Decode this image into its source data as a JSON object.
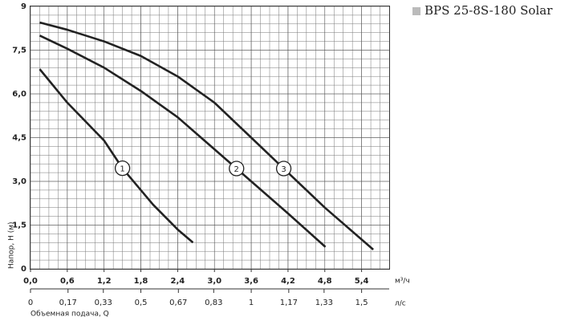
{
  "chart_data": {
    "type": "line",
    "title": "BPS 25-8S-180 Solar",
    "ylabel": "Напор, H (м)",
    "xlabel": "Объемная подача, Q",
    "xunit": "м³/ч",
    "x2unit": "л/с",
    "xlim": [
      0,
      5.85
    ],
    "ylim": [
      0,
      9
    ],
    "x2lim": [
      0,
      1.625
    ],
    "grid": true,
    "color": "#222222",
    "legend_color": "#bbbbbb",
    "xticks": [
      {
        "value": 0,
        "label": "0,0"
      },
      {
        "value": 0.6,
        "label": "0,6"
      },
      {
        "value": 1.2,
        "label": "1,2"
      },
      {
        "value": 1.8,
        "label": "1,8"
      },
      {
        "value": 2.4,
        "label": "2,4"
      },
      {
        "value": 3.0,
        "label": "3,0"
      },
      {
        "value": 3.6,
        "label": "3,6"
      },
      {
        "value": 4.2,
        "label": "4,2"
      },
      {
        "value": 4.8,
        "label": "4,8"
      },
      {
        "value": 5.4,
        "label": "5,4"
      }
    ],
    "x2ticks": [
      0,
      {
        "value": 0.17,
        "label": "0,17"
      },
      {
        "value": 0.33,
        "label": "0,33"
      },
      {
        "value": 0.5,
        "label": "0,5"
      },
      {
        "value": 0.67,
        "label": "0,67"
      },
      {
        "value": 0.83,
        "label": "0,83"
      },
      1,
      {
        "value": 1.17,
        "label": "1,17"
      },
      {
        "value": 1.33,
        "label": "1,33"
      },
      {
        "value": 1.5,
        "label": "1,5"
      }
    ],
    "yticks": [
      0,
      {
        "value": 1.5,
        "label": "1,5"
      },
      {
        "value": 3.0,
        "label": "3,0"
      },
      {
        "value": 4.5,
        "label": "4,5"
      },
      {
        "value": 6.0,
        "label": "6,0"
      },
      {
        "value": 7.5,
        "label": "7,5"
      },
      9
    ],
    "series": [
      {
        "name": "1",
        "x": [
          0.15,
          0.6,
          1.2,
          1.5,
          2.0,
          2.4,
          2.65
        ],
        "values": [
          6.85,
          5.7,
          4.4,
          3.45,
          2.2,
          1.35,
          0.9
        ]
      },
      {
        "name": "2",
        "x": [
          0.15,
          0.6,
          1.2,
          1.8,
          2.4,
          3.0,
          3.36,
          3.6,
          4.2,
          4.81
        ],
        "values": [
          8.0,
          7.55,
          6.9,
          6.1,
          5.2,
          4.1,
          3.44,
          3.0,
          1.9,
          0.75
        ]
      },
      {
        "name": "3",
        "x": [
          0.15,
          0.6,
          1.2,
          1.8,
          2.4,
          3.0,
          3.6,
          4.13,
          4.8,
          5.59
        ],
        "values": [
          8.45,
          8.2,
          7.8,
          7.3,
          6.6,
          5.7,
          4.5,
          3.44,
          2.1,
          0.66
        ]
      }
    ]
  }
}
